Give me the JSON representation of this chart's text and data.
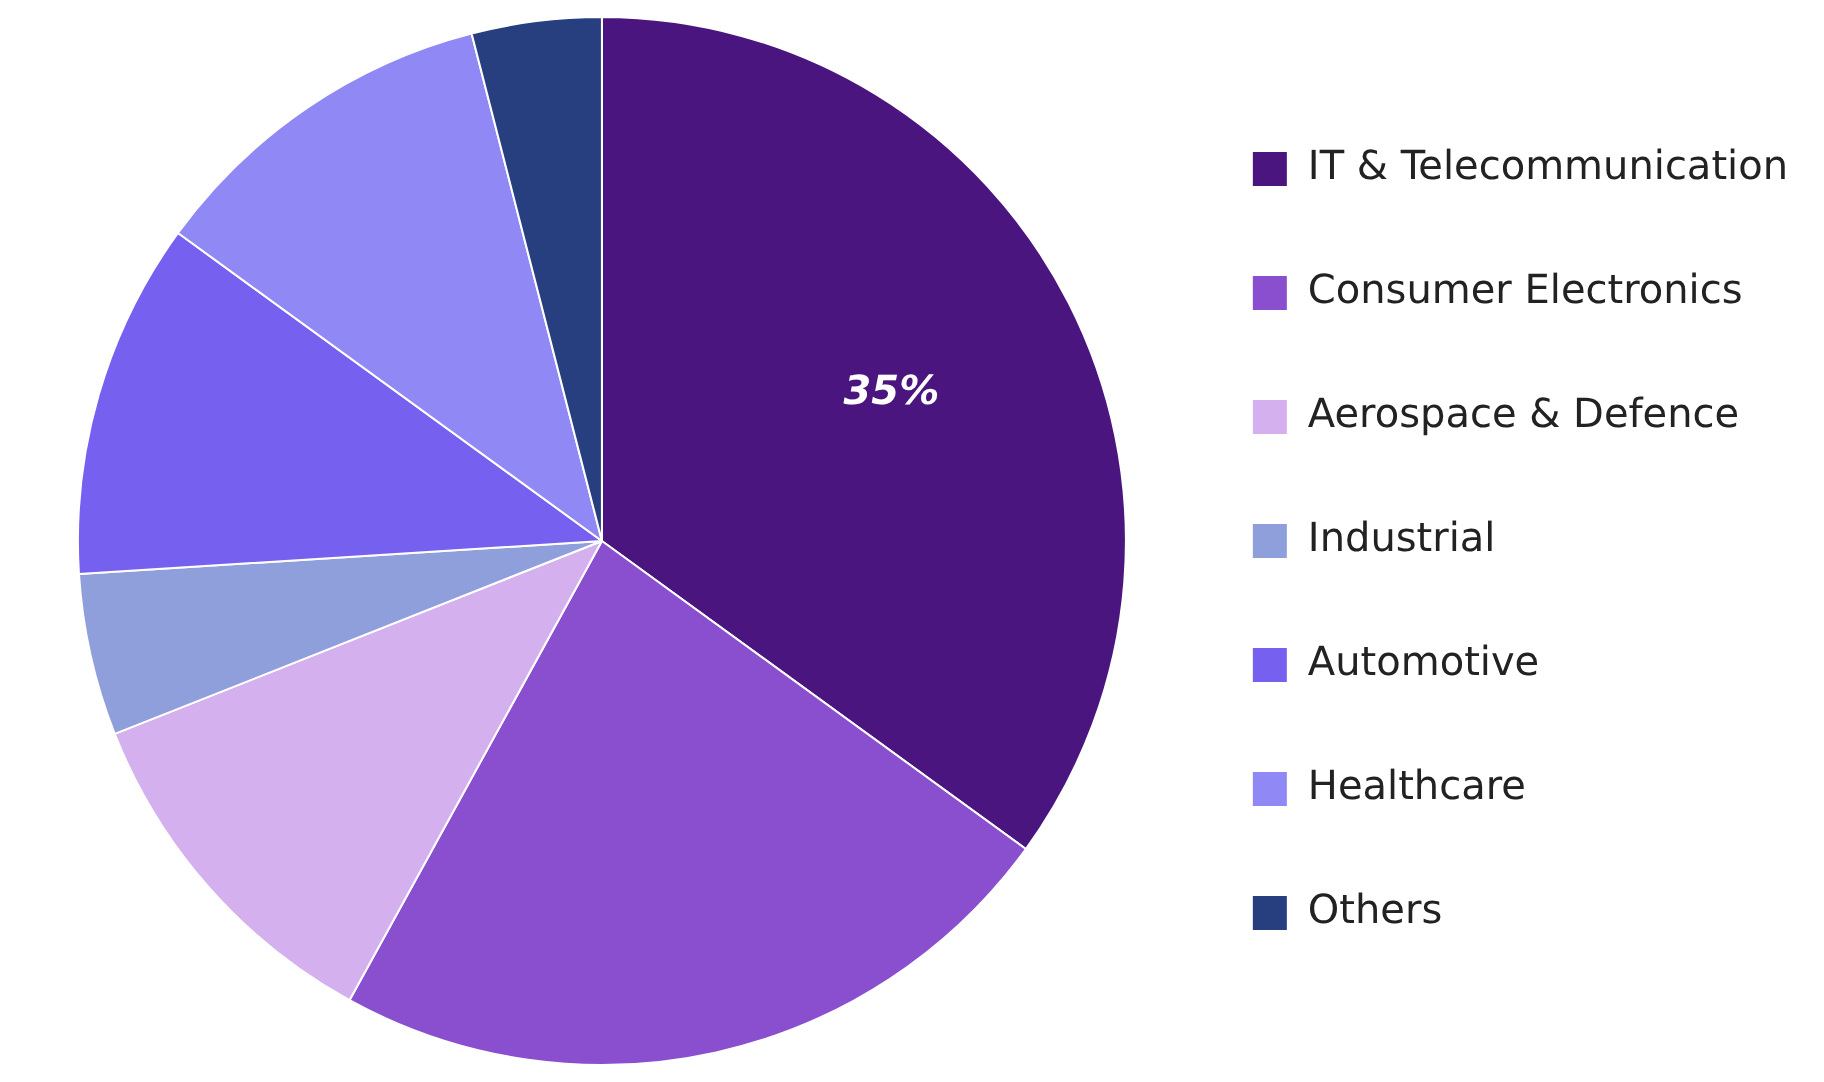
{
  "chart_data": {
    "type": "pie",
    "categories": [
      "IT & Telecommunication",
      "Consumer Electronics",
      "Aerospace & Defence",
      "Industrial",
      "Automotive",
      "Healthcare",
      "Others"
    ],
    "values": [
      35,
      23,
      11,
      5,
      11,
      11,
      4
    ],
    "colors": [
      "#4b1580",
      "#8a4fcf",
      "#d4b0ee",
      "#8e9fdc",
      "#7660f0",
      "#8f88f5",
      "#273f7f"
    ],
    "value_labels": [
      "35%",
      null,
      null,
      null,
      null,
      null,
      null
    ],
    "legend": "right"
  }
}
